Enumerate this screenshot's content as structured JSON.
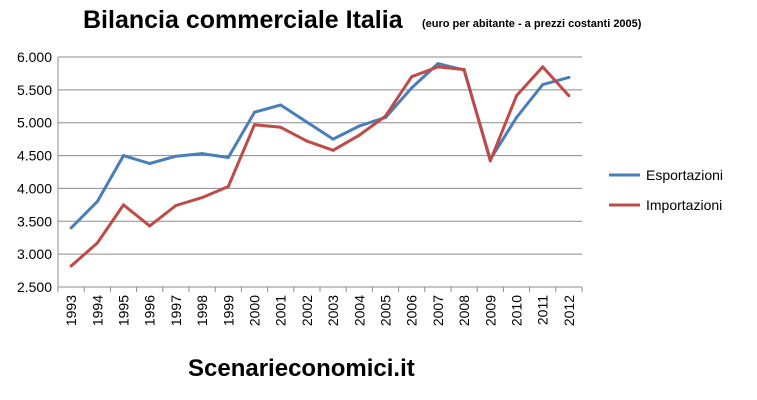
{
  "chart_data": {
    "type": "line",
    "title": "Bilancia commerciale Italia",
    "subtitle": "(euro per abitante - a prezzi costanti 2005)",
    "xlabel": "",
    "ylabel": "",
    "ylim": [
      2500,
      6000
    ],
    "yticks": [
      "2.500",
      "3.000",
      "3.500",
      "4.000",
      "4.500",
      "5.000",
      "5.500",
      "6.000"
    ],
    "ytick_values": [
      2500,
      3000,
      3500,
      4000,
      4500,
      5000,
      5500,
      6000
    ],
    "grid": true,
    "legend_position": "right",
    "categories": [
      "1993",
      "1994",
      "1995",
      "1996",
      "1997",
      "1998",
      "1999",
      "2000",
      "2001",
      "2002",
      "2003",
      "2004",
      "2005",
      "2006",
      "2007",
      "2008",
      "2009",
      "2010",
      "2011",
      "2012"
    ],
    "series": [
      {
        "name": "Esportazioni",
        "color": "#4a7ebb",
        "values": [
          3400,
          3800,
          4500,
          4380,
          4490,
          4530,
          4470,
          5160,
          5270,
          5010,
          4750,
          4950,
          5080,
          5530,
          5900,
          5800,
          4440,
          5080,
          5580,
          5690
        ]
      },
      {
        "name": "Importazioni",
        "color": "#be4b48",
        "values": [
          2820,
          3170,
          3750,
          3430,
          3740,
          3860,
          4030,
          4970,
          4930,
          4720,
          4580,
          4810,
          5100,
          5700,
          5850,
          5810,
          4420,
          5410,
          5850,
          5410
        ]
      }
    ]
  },
  "footer": "Scenarieconomici.it"
}
